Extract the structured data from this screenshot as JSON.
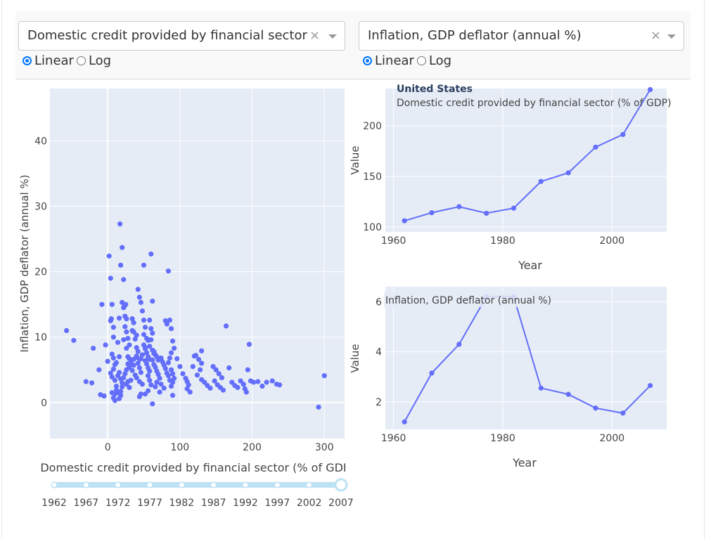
{
  "controls": {
    "left": {
      "dropdown_value": "Domestic credit provided by financial sector (%",
      "truncation": "...",
      "clear_icon": "×",
      "radio_options": [
        "Linear",
        "Log"
      ],
      "selected": "Linear"
    },
    "right": {
      "dropdown_value": "Inflation, GDP deflator (annual %)",
      "clear_icon": "×",
      "radio_options": [
        "Linear",
        "Log"
      ],
      "selected": "Linear"
    }
  },
  "accent_color": "#636efa",
  "plot_bg": "#e5ecf6",
  "chart_data": [
    {
      "type": "scatter",
      "xlabel": "Domestic credit provided by financial sector (% of GDI",
      "ylabel": "Inflation, GDP deflator (annual %)",
      "xlim": [
        -80,
        328
      ],
      "ylim": [
        -5.5,
        48
      ],
      "xticks": [
        0,
        100,
        200,
        300
      ],
      "yticks": [
        0,
        10,
        20,
        30,
        40
      ],
      "points": [
        [
          -57,
          11
        ],
        [
          -47,
          9.5
        ],
        [
          -20,
          8.3
        ],
        [
          -30,
          3.2
        ],
        [
          -22,
          3
        ],
        [
          -10,
          1.2
        ],
        [
          -5,
          1
        ],
        [
          -5,
          1
        ],
        [
          -12,
          5
        ],
        [
          -8,
          15
        ],
        [
          -3,
          8.8
        ],
        [
          0,
          6.3
        ],
        [
          2,
          22.4
        ],
        [
          4,
          19
        ],
        [
          4,
          12.5
        ],
        [
          5,
          12.8
        ],
        [
          6,
          15
        ],
        [
          8,
          11.5
        ],
        [
          8,
          10
        ],
        [
          6,
          7.4
        ],
        [
          8,
          6.8
        ],
        [
          10,
          5.8
        ],
        [
          12,
          6.1
        ],
        [
          8,
          5.1
        ],
        [
          4,
          4.5
        ],
        [
          6,
          3.9
        ],
        [
          10,
          3.4
        ],
        [
          12,
          2.5
        ],
        [
          6,
          1.5
        ],
        [
          8,
          0.7
        ],
        [
          10,
          0.3
        ],
        [
          10,
          1.3
        ],
        [
          14,
          1.5
        ],
        [
          16,
          12.9
        ],
        [
          14,
          9.2
        ],
        [
          16,
          7
        ],
        [
          17,
          27.3
        ],
        [
          18,
          21
        ],
        [
          20,
          23.7
        ],
        [
          22,
          18.8
        ],
        [
          20,
          15.3
        ],
        [
          22,
          14.5
        ],
        [
          23,
          14.7
        ],
        [
          24,
          13.2
        ],
        [
          25,
          15
        ],
        [
          26,
          12.8
        ],
        [
          24,
          11.6
        ],
        [
          26,
          10.8
        ],
        [
          28,
          9.8
        ],
        [
          22,
          9.6
        ],
        [
          26,
          8.3
        ],
        [
          30,
          8.8
        ],
        [
          28,
          7
        ],
        [
          30,
          6.7
        ],
        [
          32,
          6.1
        ],
        [
          30,
          5.4
        ],
        [
          26,
          5
        ],
        [
          24,
          4.4
        ],
        [
          22,
          3.8
        ],
        [
          20,
          3
        ],
        [
          26,
          2.8
        ],
        [
          30,
          2.3
        ],
        [
          34,
          12.8
        ],
        [
          36,
          12.2
        ],
        [
          34,
          11
        ],
        [
          36,
          10.8
        ],
        [
          40,
          10.3
        ],
        [
          38,
          9.7
        ],
        [
          40,
          8.4
        ],
        [
          42,
          7.8
        ],
        [
          40,
          7.1
        ],
        [
          44,
          6.6
        ],
        [
          42,
          6
        ],
        [
          44,
          5.3
        ],
        [
          46,
          4.6
        ],
        [
          40,
          3.8
        ],
        [
          44,
          3.2
        ],
        [
          48,
          2.8
        ],
        [
          42,
          17.3
        ],
        [
          44,
          16.1
        ],
        [
          46,
          15.3
        ],
        [
          48,
          14
        ],
        [
          50,
          12.6
        ],
        [
          52,
          11.5
        ],
        [
          50,
          10.4
        ],
        [
          54,
          9.8
        ],
        [
          50,
          8.8
        ],
        [
          52,
          8.2
        ],
        [
          54,
          7.6
        ],
        [
          56,
          7
        ],
        [
          52,
          6.4
        ],
        [
          54,
          5.9
        ],
        [
          56,
          5.3
        ],
        [
          58,
          4.8
        ],
        [
          56,
          4.1
        ],
        [
          58,
          3.4
        ],
        [
          60,
          2.7
        ],
        [
          56,
          1.8
        ],
        [
          52,
          1.3
        ],
        [
          50,
          21
        ],
        [
          60,
          22.7
        ],
        [
          62,
          15.5
        ],
        [
          58,
          12.6
        ],
        [
          60,
          11.3
        ],
        [
          62,
          10.6
        ],
        [
          60,
          9.6
        ],
        [
          58,
          8.6
        ],
        [
          62,
          8
        ],
        [
          64,
          7.5
        ],
        [
          66,
          7.3
        ],
        [
          68,
          7
        ],
        [
          62,
          6.5
        ],
        [
          64,
          5.8
        ],
        [
          66,
          5.4
        ],
        [
          68,
          4.8
        ],
        [
          70,
          4.3
        ],
        [
          72,
          3.7
        ],
        [
          68,
          3.1
        ],
        [
          66,
          2.4
        ],
        [
          62,
          -0.2
        ],
        [
          64,
          7.8
        ],
        [
          70,
          6.5
        ],
        [
          74,
          6.8
        ],
        [
          76,
          6.2
        ],
        [
          78,
          5.7
        ],
        [
          80,
          5.2
        ],
        [
          82,
          4.5
        ],
        [
          84,
          4.1
        ],
        [
          86,
          3.4
        ],
        [
          80,
          12.5
        ],
        [
          82,
          12
        ],
        [
          84,
          20.1
        ],
        [
          86,
          12.6
        ],
        [
          88,
          11.3
        ],
        [
          90,
          9.4
        ],
        [
          92,
          8.3
        ],
        [
          88,
          7.6
        ],
        [
          86,
          6.8
        ],
        [
          84,
          6.1
        ],
        [
          88,
          5
        ],
        [
          90,
          4.4
        ],
        [
          92,
          3.7
        ],
        [
          90,
          3.1
        ],
        [
          88,
          2.5
        ],
        [
          90,
          1.1
        ],
        [
          96,
          6.7
        ],
        [
          100,
          5.5
        ],
        [
          104,
          4.4
        ],
        [
          108,
          3.7
        ],
        [
          110,
          3.2
        ],
        [
          112,
          2.7
        ],
        [
          110,
          2.1
        ],
        [
          114,
          1.6
        ],
        [
          118,
          5.5
        ],
        [
          122,
          7.2
        ],
        [
          126,
          6.6
        ],
        [
          130,
          6
        ],
        [
          128,
          5
        ],
        [
          124,
          4.2
        ],
        [
          130,
          3.5
        ],
        [
          134,
          3.1
        ],
        [
          138,
          2.6
        ],
        [
          142,
          2.2
        ],
        [
          146,
          5.5
        ],
        [
          150,
          5
        ],
        [
          154,
          4.4
        ],
        [
          158,
          3.8
        ],
        [
          148,
          3.3
        ],
        [
          152,
          2.7
        ],
        [
          156,
          2.3
        ],
        [
          160,
          1.9
        ],
        [
          164,
          11.7
        ],
        [
          168,
          5.3
        ],
        [
          172,
          3.1
        ],
        [
          176,
          2.6
        ],
        [
          180,
          2.3
        ],
        [
          184,
          3.3
        ],
        [
          188,
          2.8
        ],
        [
          190,
          2.1
        ],
        [
          192,
          1.6
        ],
        [
          194,
          5
        ],
        [
          196,
          8.9
        ],
        [
          198,
          3.3
        ],
        [
          202,
          3.1
        ],
        [
          208,
          3.2
        ],
        [
          214,
          2.5
        ],
        [
          220,
          3.1
        ],
        [
          228,
          3.3
        ],
        [
          234,
          2.8
        ],
        [
          238,
          2.7
        ],
        [
          292,
          -0.7
        ],
        [
          300,
          4.1
        ],
        [
          130,
          7.9
        ],
        [
          120,
          7.1
        ],
        [
          74,
          2.8
        ],
        [
          78,
          2.2
        ],
        [
          72,
          1.6
        ],
        [
          46,
          1.3
        ],
        [
          44,
          0.9
        ],
        [
          36,
          5.7
        ],
        [
          34,
          4.9
        ],
        [
          38,
          4.2
        ],
        [
          28,
          3.2
        ],
        [
          32,
          3.4
        ],
        [
          16,
          4.6
        ],
        [
          14,
          4.1
        ],
        [
          18,
          3.6
        ],
        [
          20,
          2.4
        ],
        [
          18,
          1.7
        ],
        [
          18,
          1.1
        ],
        [
          16,
          0.6
        ],
        [
          12,
          1.9
        ],
        [
          28,
          5.9
        ],
        [
          46,
          6.7
        ],
        [
          58,
          6.6
        ],
        [
          48,
          7.3
        ],
        [
          40,
          6.9
        ],
        [
          36,
          6.6
        ],
        [
          52,
          8.4
        ],
        [
          56,
          9.5
        ]
      ]
    },
    {
      "type": "line",
      "title": "United States",
      "subtitle": "Domestic credit provided by financial sector (% of GDP)",
      "xlabel": "Year",
      "ylabel": "Value",
      "xlim": [
        1958.5,
        2010
      ],
      "ylim": [
        95,
        237
      ],
      "xticks": [
        1960,
        1980,
        2000
      ],
      "yticks": [
        100,
        150,
        200
      ],
      "x": [
        1962,
        1967,
        1972,
        1977,
        1982,
        1987,
        1992,
        1997,
        2002,
        2007
      ],
      "y": [
        106,
        114,
        120,
        113.5,
        118.5,
        145,
        153.5,
        179,
        191.5,
        236
      ]
    },
    {
      "type": "line",
      "title": "Inflation, GDP deflator (annual %)",
      "xlabel": "Year",
      "ylabel": "Value",
      "xlim": [
        1958.5,
        2010
      ],
      "ylim": [
        0.9,
        6.6
      ],
      "xticks": [
        1960,
        1980,
        2000
      ],
      "yticks": [
        2,
        4,
        6
      ],
      "x": [
        1962,
        1967,
        1972,
        1977,
        1982,
        1987,
        1992,
        1997,
        2002,
        2007
      ],
      "y": [
        1.2,
        3.15,
        4.3,
        6.2,
        6.2,
        2.55,
        2.3,
        1.75,
        1.55,
        2.65
      ]
    }
  ],
  "slider": {
    "years": [
      "1962",
      "1967",
      "1972",
      "1977",
      "1982",
      "1987",
      "1992",
      "1997",
      "2002",
      "2007"
    ],
    "selected": "2007"
  }
}
